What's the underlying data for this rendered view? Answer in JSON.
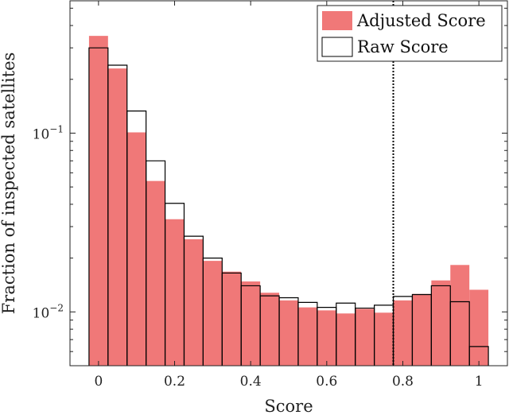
{
  "chart_data": {
    "type": "bar",
    "xlabel": "Score",
    "ylabel": "Fraction of inspected satellites",
    "xlim": [
      -0.075,
      1.075
    ],
    "ylim": [
      0.005,
      0.55
    ],
    "yscale": "log",
    "bin_width": 0.05,
    "x_ticks": [
      0,
      0.2,
      0.4,
      0.6,
      0.8,
      1
    ],
    "x_tick_labels": [
      "0",
      "0.2",
      "0.4",
      "0.6",
      "0.8",
      "1"
    ],
    "y_ticks": [
      0.01,
      0.1
    ],
    "y_tick_labels": [
      {
        "base": "10",
        "exp": "−2"
      },
      {
        "base": "10",
        "exp": "−1"
      }
    ],
    "threshold_line": {
      "x": 0.775,
      "style": "dotted"
    },
    "legend_position": "top-right",
    "bin_centers": [
      0,
      0.05,
      0.1,
      0.15,
      0.2,
      0.25,
      0.3,
      0.35,
      0.4,
      0.45,
      0.5,
      0.55,
      0.6,
      0.65,
      0.7,
      0.75,
      0.8,
      0.85,
      0.9,
      0.95,
      1
    ],
    "series": [
      {
        "name": "Adjusted Score",
        "style": "filled",
        "color": "#f07878",
        "values": [
          0.35,
          0.23,
          0.101,
          0.054,
          0.033,
          0.0255,
          0.0193,
          0.0168,
          0.0148,
          0.0128,
          0.0116,
          0.0106,
          0.0102,
          0.0098,
          0.0104,
          0.0099,
          0.0116,
          0.0126,
          0.015,
          0.0183,
          0.0133
        ]
      },
      {
        "name": "Raw Score",
        "style": "outline",
        "color": "#000000",
        "values": [
          0.3,
          0.24,
          0.133,
          0.07,
          0.0405,
          0.0265,
          0.02,
          0.0165,
          0.014,
          0.0123,
          0.012,
          0.0113,
          0.0106,
          0.0112,
          0.0105,
          0.0109,
          0.0122,
          0.0125,
          0.014,
          0.0114,
          0.0064
        ]
      }
    ]
  }
}
